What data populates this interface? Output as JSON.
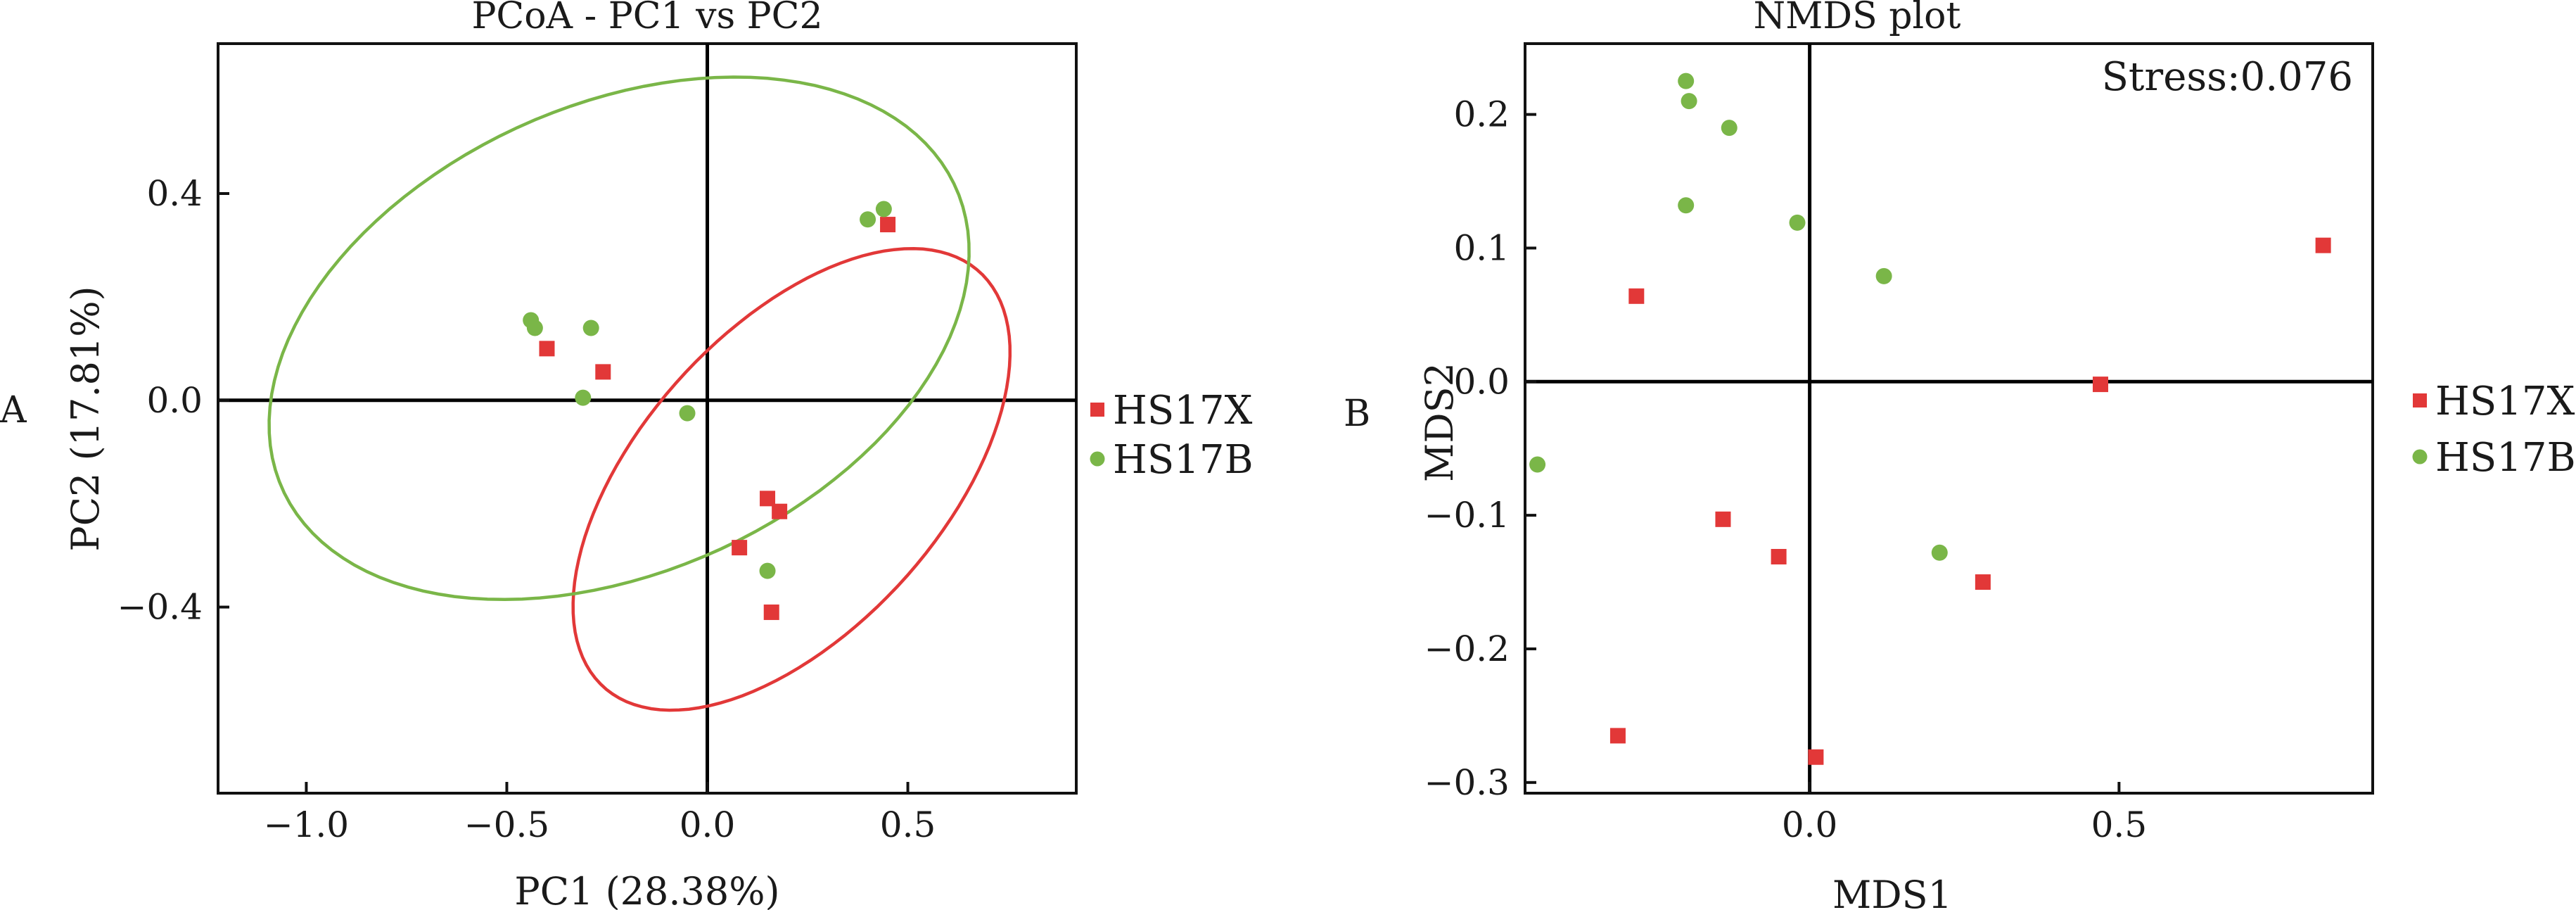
{
  "colors": {
    "HS17X": "#e23838",
    "HS17B": "#7ab648"
  },
  "chart_data": [
    {
      "type": "scatter",
      "panel_label": "A",
      "title": "PCoA - PC1 vs PC2",
      "xlabel": "PC1 (28.38%)",
      "ylabel": "PC2 (17.81%)",
      "xlim": [
        -1.22,
        0.92
      ],
      "ylim": [
        -0.76,
        0.69
      ],
      "xticks": [
        {
          "v": -1.0,
          "label": "−1.0"
        },
        {
          "v": -0.5,
          "label": "−0.5"
        },
        {
          "v": 0.0,
          "label": "0.0"
        },
        {
          "v": 0.5,
          "label": "0.5"
        }
      ],
      "yticks": [
        {
          "v": -0.4,
          "label": "−0.4"
        },
        {
          "v": 0.0,
          "label": "0.0"
        },
        {
          "v": 0.4,
          "label": "0.4"
        }
      ],
      "zero_lines": true,
      "legend_position": "right",
      "series": [
        {
          "name": "HS17X",
          "marker": "square",
          "points": [
            [
              -0.4,
              0.1
            ],
            [
              -0.26,
              0.055
            ],
            [
              0.45,
              0.34
            ],
            [
              0.15,
              -0.19
            ],
            [
              0.18,
              -0.215
            ],
            [
              0.08,
              -0.285
            ],
            [
              0.16,
              -0.41
            ]
          ],
          "ellipse": {
            "cx": 0.21,
            "cy": -0.153,
            "rx": 0.625,
            "ry": 0.325,
            "angle_deg": 35
          }
        },
        {
          "name": "HS17B",
          "marker": "circle",
          "points": [
            [
              -0.44,
              0.155
            ],
            [
              -0.43,
              0.14
            ],
            [
              -0.29,
              0.14
            ],
            [
              -0.31,
              0.005
            ],
            [
              -0.05,
              -0.025
            ],
            [
              0.4,
              0.35
            ],
            [
              0.44,
              0.37
            ],
            [
              0.15,
              -0.33
            ]
          ],
          "ellipse": {
            "cx": -0.22,
            "cy": 0.12,
            "rx": 0.895,
            "ry": 0.465,
            "angle_deg": 15
          }
        }
      ]
    },
    {
      "type": "scatter",
      "panel_label": "B",
      "title": "NMDS plot",
      "annotation": "Stress:0.076",
      "xlabel": "MDS1",
      "ylabel": "MDS2",
      "xlim": [
        -0.46,
        0.91
      ],
      "ylim": [
        -0.308,
        0.253
      ],
      "xticks": [
        {
          "v": 0.0,
          "label": "0.0"
        },
        {
          "v": 0.5,
          "label": "0.5"
        }
      ],
      "yticks": [
        {
          "v": -0.3,
          "label": "−0.3"
        },
        {
          "v": -0.2,
          "label": "−0.2"
        },
        {
          "v": -0.1,
          "label": "−0.1"
        },
        {
          "v": 0.0,
          "label": "0.0"
        },
        {
          "v": 0.1,
          "label": "0.1"
        },
        {
          "v": 0.2,
          "label": "0.2"
        }
      ],
      "zero_lines": true,
      "legend_position": "right",
      "series": [
        {
          "name": "HS17X",
          "marker": "square",
          "points": [
            [
              0.83,
              0.102
            ],
            [
              -0.28,
              0.064
            ],
            [
              0.47,
              -0.002
            ],
            [
              -0.14,
              -0.103
            ],
            [
              -0.05,
              -0.131
            ],
            [
              0.28,
              -0.15
            ],
            [
              -0.31,
              -0.265
            ],
            [
              0.01,
              -0.281
            ]
          ]
        },
        {
          "name": "HS17B",
          "marker": "circle",
          "points": [
            [
              -0.2,
              0.225
            ],
            [
              -0.195,
              0.21
            ],
            [
              -0.13,
              0.19
            ],
            [
              -0.2,
              0.132
            ],
            [
              -0.02,
              0.119
            ],
            [
              0.12,
              0.079
            ],
            [
              -0.44,
              -0.062
            ],
            [
              0.21,
              -0.128
            ]
          ]
        }
      ]
    }
  ]
}
